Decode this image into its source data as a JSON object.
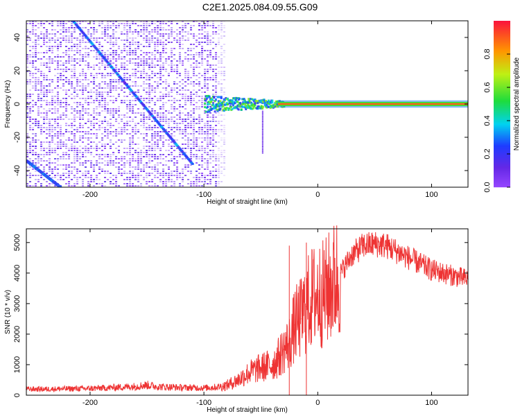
{
  "title": "C2E1.2025.084.09.55.G09",
  "chart_data": [
    {
      "type": "heatmap",
      "xlabel": "Height of straight line (km)",
      "ylabel": "Frequency (Hz)",
      "xlim": [
        -256,
        132
      ],
      "ylim": [
        -50,
        50
      ],
      "xticks": [
        -200,
        -100,
        0,
        100
      ],
      "yticks": [
        -40,
        -20,
        0,
        20,
        40
      ],
      "colorbar": {
        "label": "Normalized spectral amplitude",
        "range": [
          0,
          1
        ],
        "ticks": [
          "0.0",
          "0.2",
          "0.4",
          "0.6",
          "0.8"
        ],
        "tick_values": [
          0,
          0.2,
          0.4,
          0.6,
          0.8
        ],
        "colormap": "rainbow (violet to red)"
      },
      "features": [
        {
          "name": "strong carrier line",
          "x_range": [
            -100,
            132
          ],
          "frequency": 0,
          "amplitude": 0.9
        },
        {
          "name": "diagonal multipath line A",
          "x_start": -215,
          "y_start": 50,
          "x_end": -110,
          "y_end": -36,
          "amplitude": 0.25
        },
        {
          "name": "diagonal multipath line B",
          "x_start": -256,
          "y_start": -34,
          "x_end": -226,
          "y_end": -50,
          "amplitude": 0.25
        },
        {
          "name": "low-amplitude noise region",
          "x_range": [
            -256,
            -82
          ],
          "frequency_range": [
            -50,
            50
          ],
          "amplitude": 0.05
        }
      ]
    },
    {
      "type": "line",
      "xlabel": "Height of straight line (km)",
      "ylabel": "SNR (10 * v/v)",
      "xlim": [
        -256,
        132
      ],
      "ylim": [
        0,
        5450
      ],
      "xticks": [
        -200,
        -100,
        0,
        100
      ],
      "yticks": [
        0,
        1000,
        2000,
        3000,
        4000,
        5000
      ],
      "line_color": "#ee3333",
      "series": [
        {
          "x": [
            -256,
            -240,
            -220,
            -200,
            -180,
            -160,
            -150,
            -140,
            -120,
            -100,
            -90,
            -80,
            -70,
            -60,
            -50,
            -40,
            -35,
            -30,
            -25,
            -20,
            -15,
            -10,
            -5,
            0,
            5,
            10,
            20,
            30,
            40,
            50,
            60,
            70,
            80,
            90,
            100,
            110,
            120,
            132
          ],
          "values": [
            200,
            200,
            210,
            220,
            250,
            290,
            330,
            280,
            250,
            240,
            260,
            320,
            500,
            750,
            900,
            1000,
            1200,
            1500,
            1700,
            2300,
            2500,
            2900,
            3200,
            3300,
            3300,
            3500,
            4000,
            4600,
            4900,
            4950,
            4900,
            4700,
            4500,
            4300,
            4100,
            4000,
            3900,
            3800
          ]
        }
      ],
      "annotations": [
        {
          "x": -25,
          "y": 4900,
          "text": ""
        },
        {
          "x": -10,
          "y": 5000,
          "text": ""
        }
      ]
    }
  ]
}
